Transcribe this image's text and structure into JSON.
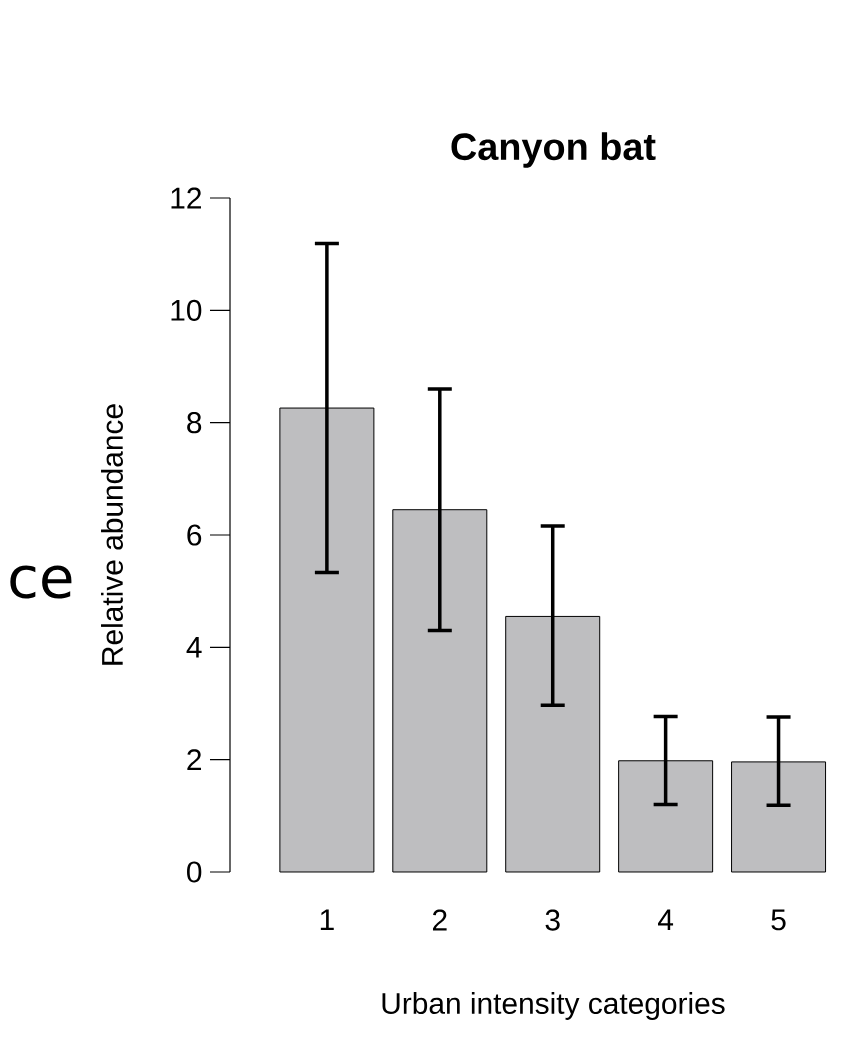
{
  "chart_data": {
    "type": "bar",
    "title": "Canyon bat",
    "xlabel": "Urban intensity categories",
    "ylabel": "Relative abundance",
    "categories": [
      "1",
      "2",
      "3",
      "4",
      "5"
    ],
    "values": [
      8.26,
      6.45,
      4.55,
      1.98,
      1.96
    ],
    "errors": [
      [
        5.33,
        11.19
      ],
      [
        4.3,
        8.6
      ],
      [
        2.97,
        6.16
      ],
      [
        1.2,
        2.77
      ],
      [
        1.19,
        2.76
      ]
    ],
    "color": "#bebec0",
    "ylim": [
      0,
      12
    ],
    "yticks": [
      0,
      2,
      4,
      6,
      8,
      10,
      12
    ],
    "annotations": [
      "ce"
    ]
  }
}
